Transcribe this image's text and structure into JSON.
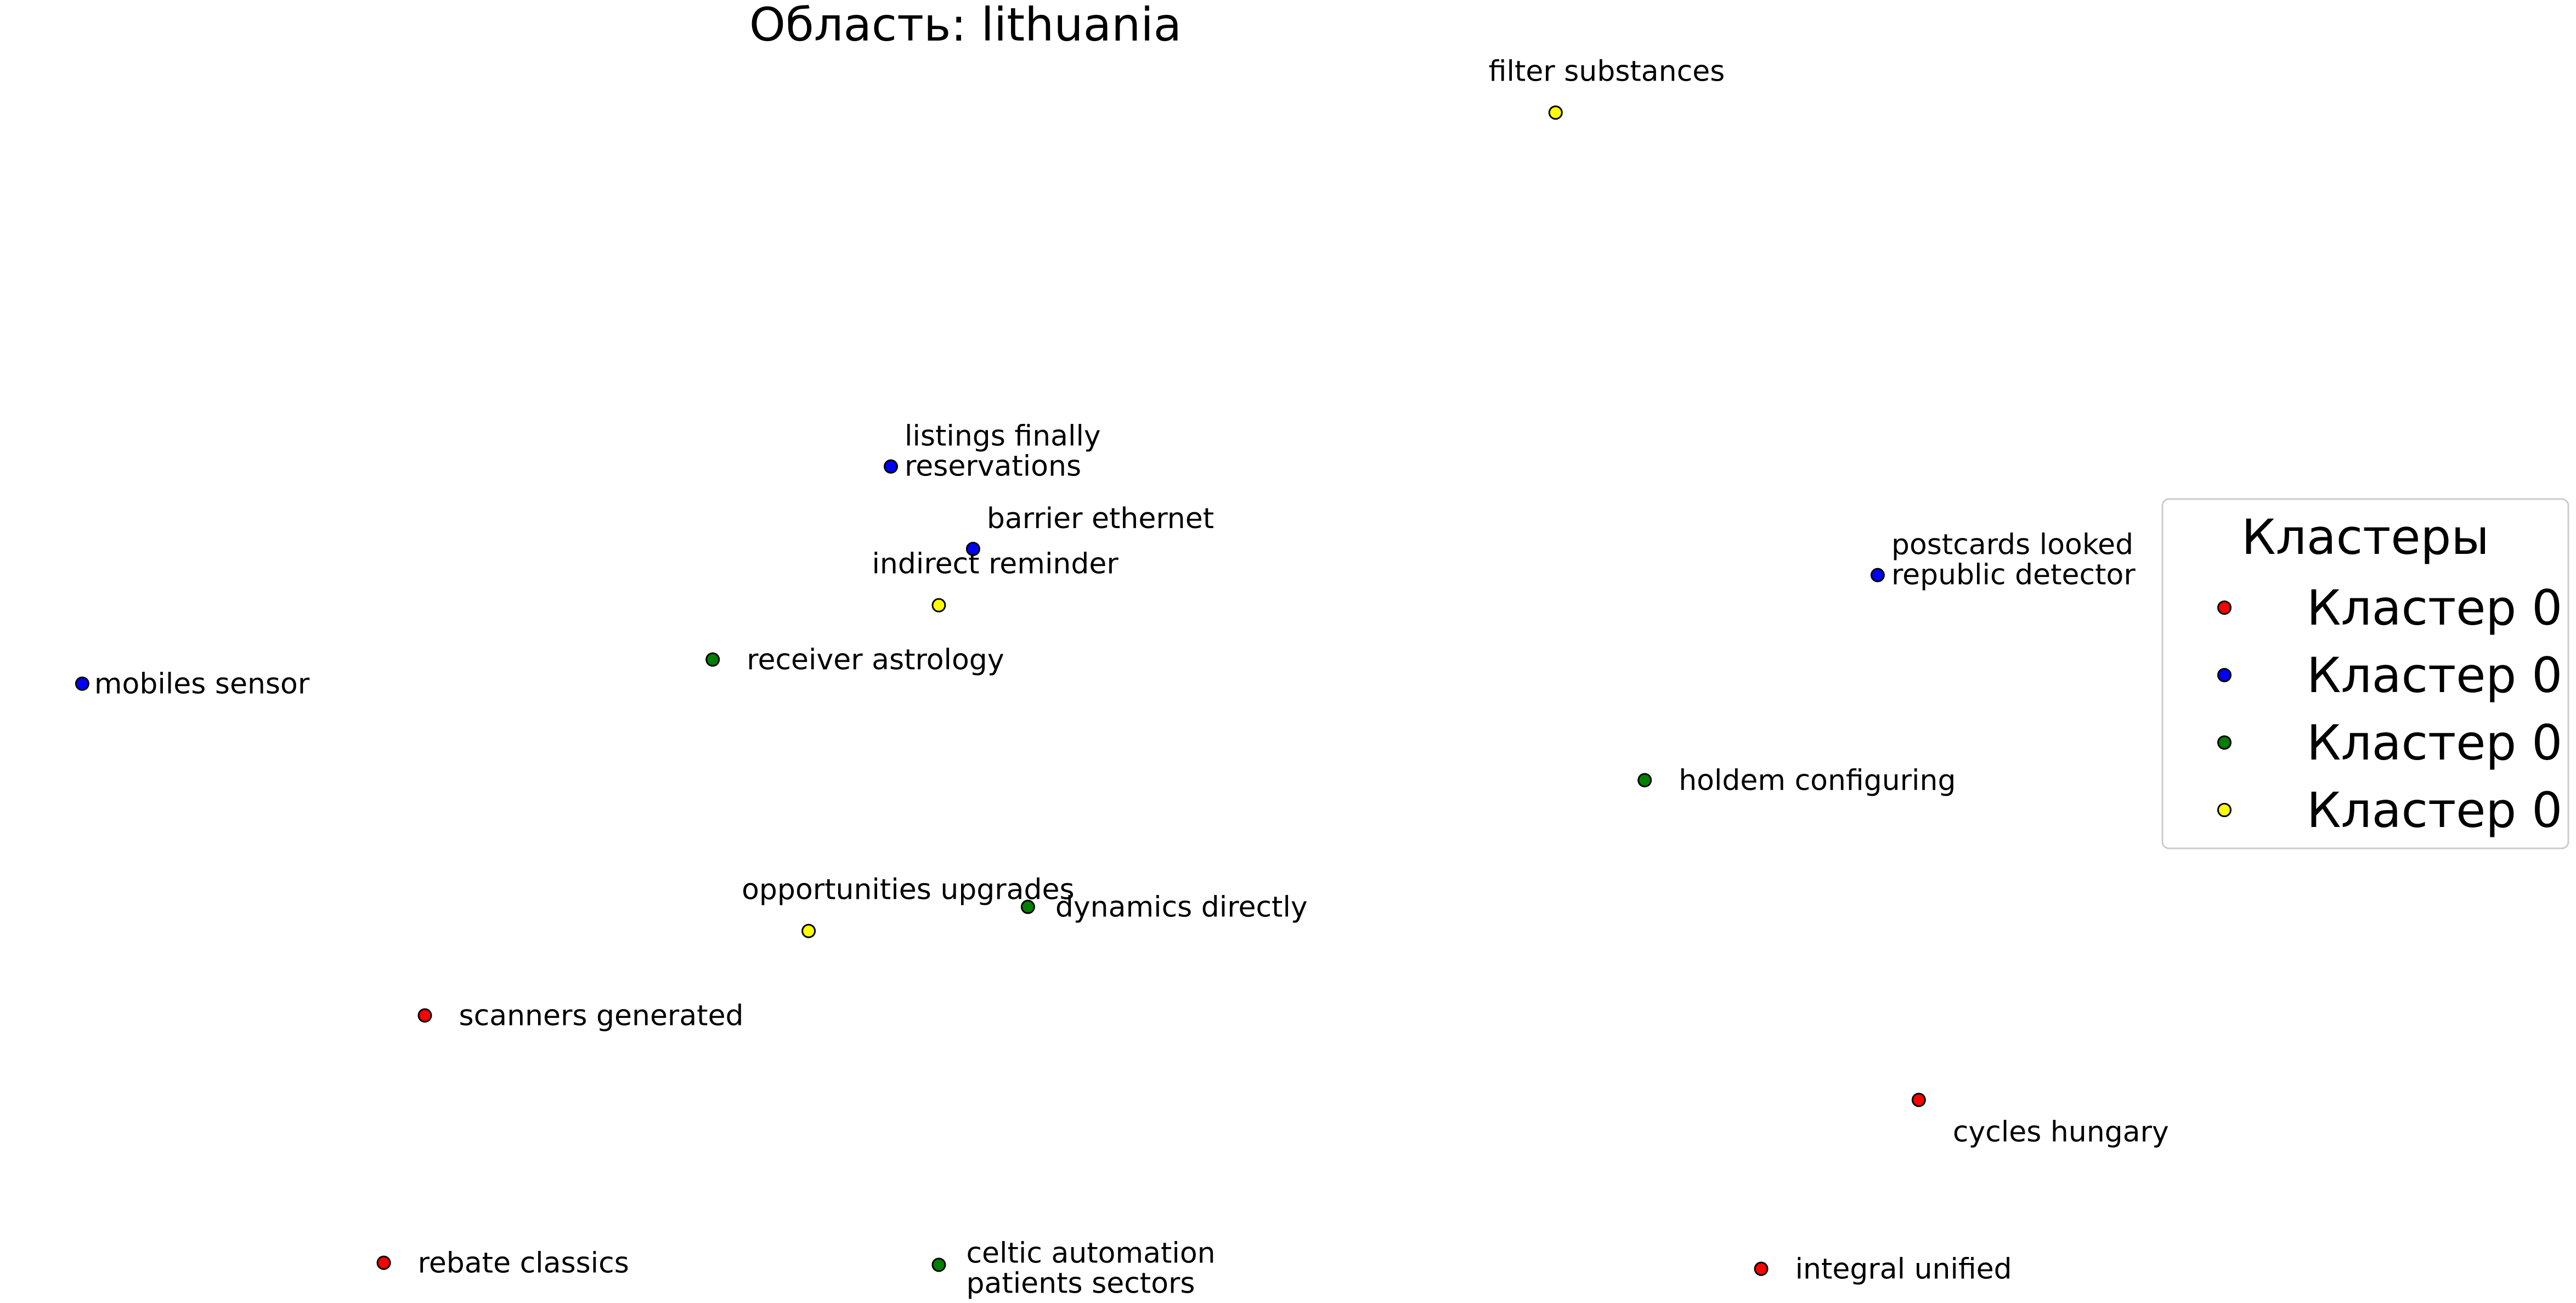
{
  "chart_data": {
    "type": "scatter",
    "title": "Область: lithuania",
    "xlabel": "",
    "ylabel": "",
    "axes_visible": false,
    "grid": false,
    "legend": {
      "title": "Кластеры",
      "placement": "right",
      "entries": [
        {
          "label": "Кластер 0",
          "color": "#ff0000"
        },
        {
          "label": "Кластер 0",
          "color": "#0000ff"
        },
        {
          "label": "Кластер 0",
          "color": "#008000"
        },
        {
          "label": "Кластер 0",
          "color": "#ffff00"
        }
      ]
    },
    "points": [
      {
        "lines": [
          "filter substances"
        ],
        "cluster": 3,
        "x": 1.55,
        "y": 3.85,
        "label_pos": "above"
      },
      {
        "lines": [
          "listings finally",
          "reservations"
        ],
        "cluster": 1,
        "x": 0.58,
        "y": 2.09,
        "label_pos": "right"
      },
      {
        "lines": [
          "barrier ethernet"
        ],
        "cluster": 1,
        "x": 0.7,
        "y": 1.68,
        "label_pos": "right"
      },
      {
        "lines": [
          "indirect reminder"
        ],
        "cluster": 3,
        "x": 0.65,
        "y": 1.4,
        "label_pos": "above"
      },
      {
        "lines": [
          "postcards looked",
          "republic detector"
        ],
        "cluster": 1,
        "x": 2.02,
        "y": 1.55,
        "label_pos": "right"
      },
      {
        "lines": [
          "receiver astrology"
        ],
        "cluster": 2,
        "x": 0.32,
        "y": 1.13,
        "label_pos": "right"
      },
      {
        "lines": [
          "mobiles sensor"
        ],
        "cluster": 1,
        "x": -0.6,
        "y": 1.01,
        "label_pos": "right"
      },
      {
        "lines": [
          "holdem configuring"
        ],
        "cluster": 2,
        "x": 1.68,
        "y": 0.53,
        "label_pos": "right"
      },
      {
        "lines": [
          "opportunities upgrades"
        ],
        "cluster": 3,
        "x": 0.46,
        "y": -0.22,
        "label_pos": "above"
      },
      {
        "lines": [
          "dynamics directly"
        ],
        "cluster": 2,
        "x": 0.78,
        "y": -0.1,
        "label_pos": "right"
      },
      {
        "lines": [
          "scanners generated"
        ],
        "cluster": 0,
        "x": -0.1,
        "y": -0.64,
        "label_pos": "right"
      },
      {
        "lines": [
          "cycles hungary"
        ],
        "cluster": 0,
        "x": 2.08,
        "y": -1.06,
        "label_pos": "below-right"
      },
      {
        "lines": [
          "rebate classics"
        ],
        "cluster": 0,
        "x": -0.16,
        "y": -1.87,
        "label_pos": "right"
      },
      {
        "lines": [
          "celtic automation",
          "patients sectors"
        ],
        "cluster": 2,
        "x": 0.65,
        "y": -1.88,
        "label_pos": "right"
      },
      {
        "lines": [
          "integral unified"
        ],
        "cluster": 0,
        "x": 1.85,
        "y": -1.9,
        "label_pos": "right"
      }
    ],
    "xlim": [
      -0.72,
      2.61
    ],
    "ylim": [
      -2.07,
      4.41
    ]
  }
}
